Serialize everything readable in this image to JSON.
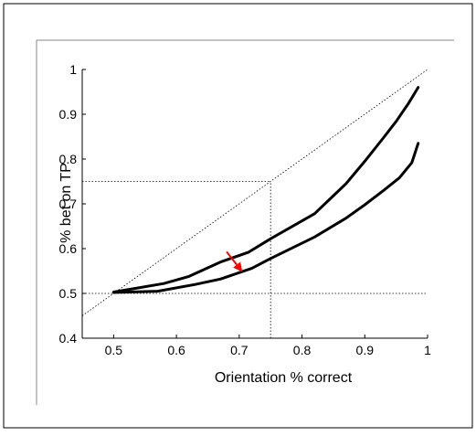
{
  "chart_data": {
    "type": "line",
    "xlabel": "Orientation % correct",
    "ylabel": "% bet on TP",
    "xlim": [
      0.45,
      1.0
    ],
    "ylim": [
      0.4,
      1.0
    ],
    "x_ticks": [
      0.5,
      0.6,
      0.7,
      0.8,
      0.9,
      1.0
    ],
    "x_tick_labels": [
      "0.5",
      "0.6",
      "0.7",
      "0.8",
      "0.9",
      "1"
    ],
    "y_ticks": [
      0.4,
      0.5,
      0.6,
      0.7,
      0.8,
      0.9,
      1.0
    ],
    "y_tick_labels": [
      "0.4",
      "0.5",
      "0.6",
      "0.7",
      "0.8",
      "0.9",
      "1"
    ],
    "grid": false,
    "series": [
      {
        "color": "#000000",
        "style": "thick",
        "x": [
          0.5,
          0.58,
          0.62,
          0.67,
          0.715,
          0.75,
          0.82,
          0.87,
          0.9,
          0.93,
          0.95,
          0.97,
          0.985
        ],
        "y": [
          0.503,
          0.522,
          0.538,
          0.57,
          0.592,
          0.622,
          0.678,
          0.745,
          0.795,
          0.848,
          0.884,
          0.925,
          0.96
        ]
      },
      {
        "color": "#000000",
        "style": "thick",
        "x": [
          0.5,
          0.57,
          0.63,
          0.67,
          0.72,
          0.75,
          0.82,
          0.87,
          0.9,
          0.93,
          0.955,
          0.975,
          0.985
        ],
        "y": [
          0.502,
          0.505,
          0.52,
          0.532,
          0.556,
          0.578,
          0.626,
          0.668,
          0.698,
          0.73,
          0.758,
          0.792,
          0.835
        ]
      }
    ],
    "reference_lines": [
      {
        "kind": "diagonal",
        "x": [
          0.45,
          1.0
        ],
        "y": [
          0.45,
          1.0
        ],
        "style": "dotted"
      },
      {
        "kind": "horizontal",
        "y": 0.5,
        "x": [
          0.45,
          1.0
        ],
        "style": "dotted"
      },
      {
        "kind": "horizontal",
        "y": 0.75,
        "x": [
          0.45,
          0.75
        ],
        "style": "dotted"
      },
      {
        "kind": "vertical",
        "x": 0.75,
        "y": [
          0.4,
          0.75
        ],
        "style": "dotted"
      }
    ],
    "annotations": [
      {
        "kind": "arrow",
        "color": "#ff0000",
        "from": [
          0.68,
          0.593
        ],
        "to": [
          0.705,
          0.548
        ]
      }
    ]
  }
}
